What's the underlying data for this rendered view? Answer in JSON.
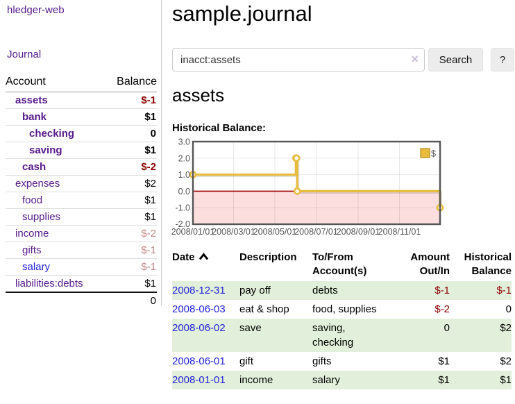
{
  "app": {
    "title": "hledger-web",
    "nav": {
      "journal": "Journal"
    }
  },
  "sidebar": {
    "columns": {
      "account": "Account",
      "balance": "Balance"
    },
    "accounts": [
      {
        "name": "assets",
        "balance": "$-1",
        "indent": 1,
        "bold": true,
        "tone": "neg",
        "link": "purple"
      },
      {
        "name": "bank",
        "balance": "$1",
        "indent": 2,
        "bold": true,
        "tone": "pos",
        "link": "purple"
      },
      {
        "name": "checking",
        "balance": "0",
        "indent": 3,
        "bold": true,
        "tone": "pos",
        "link": "purple"
      },
      {
        "name": "saving",
        "balance": "$1",
        "indent": 3,
        "bold": true,
        "tone": "pos",
        "link": "purple"
      },
      {
        "name": "cash",
        "balance": "$-2",
        "indent": 2,
        "bold": true,
        "tone": "neg",
        "link": "purple"
      },
      {
        "name": "expenses",
        "balance": "$2",
        "indent": 1,
        "bold": false,
        "tone": "pos",
        "link": "purple"
      },
      {
        "name": "food",
        "balance": "$1",
        "indent": 2,
        "bold": false,
        "tone": "pos",
        "link": "purple"
      },
      {
        "name": "supplies",
        "balance": "$1",
        "indent": 2,
        "bold": false,
        "tone": "pos",
        "link": "purple"
      },
      {
        "name": "income",
        "balance": "$-2",
        "indent": 1,
        "bold": false,
        "tone": "negmuted",
        "link": "purple"
      },
      {
        "name": "gifts",
        "balance": "$-1",
        "indent": 2,
        "bold": false,
        "tone": "negmuted",
        "link": "purple"
      },
      {
        "name": "salary",
        "balance": "$-1",
        "indent": 2,
        "bold": false,
        "tone": "negmuted",
        "link": "blue"
      },
      {
        "name": "liabilities:debts",
        "balance": "$1",
        "indent": 1,
        "bold": false,
        "tone": "pos",
        "link": "purple"
      }
    ],
    "total": "0"
  },
  "main": {
    "title": "sample.journal",
    "search": {
      "value": "inacct:assets",
      "clear": "×",
      "button": "Search",
      "help": "?"
    },
    "account_heading": "assets",
    "chart_title": "Historical Balance:"
  },
  "chart_data": {
    "type": "line",
    "style": "step-after",
    "title": "Historical Balance of assets",
    "series": [
      {
        "name": "$",
        "color": "#e8bb3d",
        "points": [
          [
            "2008-01-01",
            1
          ],
          [
            "2008-06-01",
            2
          ],
          [
            "2008-06-02",
            2
          ],
          [
            "2008-06-03",
            0
          ],
          [
            "2008-12-31",
            -1
          ]
        ]
      }
    ],
    "x_range": [
      "2008-01-01",
      "2008-12-31"
    ],
    "ylim": [
      -2.0,
      3.0
    ],
    "y_tick_labels": [
      "3.0",
      "2.0",
      "1.0",
      "0.0",
      "-1.0",
      "-2.0"
    ],
    "x_tick_labels": [
      "2008/01/01",
      "2008/03/01",
      "2008/05/01",
      "2008/07/01",
      "2008/09/01",
      "2008/11/01"
    ],
    "legend": {
      "label": "$",
      "position": "top-right"
    },
    "grid": true,
    "negative_region_color": "#fcdede",
    "zero_line_color": "#a00000"
  },
  "register": {
    "columns": {
      "date": "Date",
      "description": "Description",
      "accounts_l1": "To/From",
      "accounts_l2": "Account(s)",
      "amount_l1": "Amount",
      "amount_l2": "Out/In",
      "balance_l1": "Historical",
      "balance_l2": "Balance"
    },
    "rows": [
      {
        "date": "2008-12-31",
        "description": "pay off",
        "accounts": "debts",
        "amount": "$-1",
        "amount_tone": "neg",
        "balance": "$-1",
        "balance_tone": "neg",
        "highlight": true
      },
      {
        "date": "2008-06-03",
        "description": "eat & shop",
        "accounts": "food, supplies",
        "amount": "$-2",
        "amount_tone": "neg",
        "balance": "0",
        "balance_tone": "pos",
        "highlight": false
      },
      {
        "date": "2008-06-02",
        "description": "save",
        "accounts": "saving, checking",
        "amount": "0",
        "amount_tone": "pos",
        "balance": "$2",
        "balance_tone": "pos",
        "highlight": true
      },
      {
        "date": "2008-06-01",
        "description": "gift",
        "accounts": "gifts",
        "amount": "$1",
        "amount_tone": "pos",
        "balance": "$2",
        "balance_tone": "pos",
        "highlight": false
      },
      {
        "date": "2008-01-01",
        "description": "income",
        "accounts": "salary",
        "amount": "$1",
        "amount_tone": "pos",
        "balance": "$1",
        "balance_tone": "pos",
        "highlight": true
      }
    ]
  },
  "colors": {
    "link_purple": "#551a8b",
    "link_blue": "#2323d9",
    "negative": "#8b0000",
    "negative_muted": "#c28585",
    "row_highlight": "#e2efda",
    "series_gold": "#e8bb3d"
  }
}
